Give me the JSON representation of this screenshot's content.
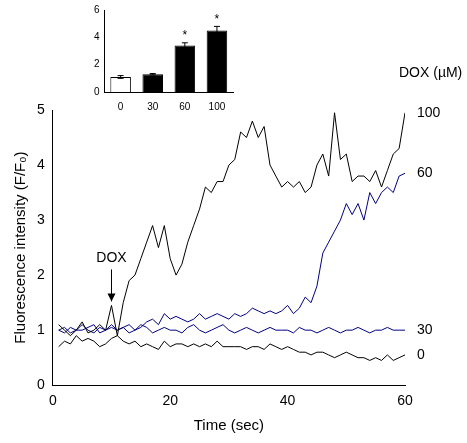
{
  "chart_data": [
    {
      "type": "line",
      "x_label": "Time (sec)",
      "y_label": "Fluorescence intensity (F/F₀)",
      "series_label_title": "DOX (µM)",
      "annotations": [
        {
          "text": "DOX",
          "x": 10,
          "y": 1.45
        }
      ],
      "x": [
        1,
        2,
        3,
        4,
        5,
        6,
        7,
        8,
        9,
        10,
        11,
        12,
        13,
        14,
        15,
        16,
        17,
        18,
        19,
        20,
        21,
        22,
        23,
        24,
        25,
        26,
        27,
        28,
        29,
        30,
        31,
        32,
        33,
        34,
        35,
        36,
        37,
        38,
        39,
        40,
        41,
        42,
        43,
        44,
        45,
        46,
        47,
        48,
        49,
        50,
        51,
        52,
        53,
        54,
        55,
        56,
        57,
        58,
        59,
        60
      ],
      "series": [
        {
          "name": "100",
          "color": "#000000",
          "values": [
            1.1,
            1.0,
            0.9,
            1.0,
            1.15,
            0.95,
            1.0,
            1.1,
            1.0,
            1.45,
            0.9,
            1.5,
            1.9,
            2.0,
            2.3,
            2.6,
            2.9,
            2.5,
            2.9,
            2.3,
            2.0,
            2.2,
            2.6,
            2.9,
            3.2,
            3.6,
            3.5,
            3.7,
            3.7,
            4.0,
            4.1,
            4.6,
            4.5,
            4.8,
            4.5,
            4.7,
            4.0,
            3.8,
            3.6,
            3.7,
            3.6,
            3.7,
            3.5,
            3.6,
            4.0,
            4.2,
            3.8,
            4.95,
            4.1,
            4.2,
            3.7,
            3.8,
            3.8,
            3.7,
            3.9,
            3.6,
            3.9,
            4.2,
            4.3,
            4.95
          ]
        },
        {
          "name": "60",
          "color": "#000080",
          "values": [
            1.0,
            1.05,
            0.95,
            1.0,
            1.0,
            1.05,
            1.1,
            0.95,
            1.0,
            1.05,
            1.0,
            1.05,
            1.1,
            1.0,
            1.05,
            1.15,
            1.2,
            1.1,
            1.3,
            1.2,
            1.25,
            1.2,
            1.15,
            1.2,
            1.3,
            1.2,
            1.25,
            1.3,
            1.25,
            1.2,
            1.3,
            1.25,
            1.3,
            1.4,
            1.35,
            1.3,
            1.35,
            1.3,
            1.35,
            1.45,
            1.3,
            1.4,
            1.6,
            1.5,
            1.8,
            2.4,
            2.6,
            2.8,
            3.0,
            3.3,
            3.1,
            3.3,
            3.0,
            3.5,
            3.3,
            3.5,
            3.6,
            3.5,
            3.8,
            3.85
          ]
        },
        {
          "name": "30",
          "color": "#000080",
          "values": [
            1.0,
            0.95,
            1.05,
            1.0,
            1.1,
            1.0,
            0.95,
            1.05,
            1.0,
            1.1,
            1.0,
            1.05,
            0.95,
            1.0,
            1.1,
            1.05,
            0.95,
            1.0,
            1.05,
            1.0,
            1.0,
            0.95,
            1.05,
            1.1,
            1.0,
            0.95,
            1.0,
            1.05,
            1.1,
            1.0,
            0.95,
            1.0,
            1.05,
            1.0,
            0.95,
            1.0,
            1.05,
            1.0,
            1.0,
            1.0,
            0.95,
            1.05,
            1.0,
            1.0,
            0.95,
            1.0,
            1.05,
            1.0,
            0.95,
            1.0,
            1.0,
            1.05,
            1.0,
            0.95,
            1.0,
            1.0,
            1.05,
            1.0,
            1.0,
            1.0
          ]
        },
        {
          "name": "0",
          "color": "#000000",
          "values": [
            0.7,
            0.8,
            0.75,
            0.9,
            0.8,
            0.85,
            0.8,
            0.7,
            0.75,
            0.85,
            0.9,
            0.8,
            0.75,
            0.8,
            0.7,
            0.75,
            0.7,
            0.65,
            0.8,
            0.7,
            0.75,
            0.75,
            0.7,
            0.75,
            0.7,
            0.75,
            0.7,
            0.8,
            0.7,
            0.7,
            0.7,
            0.7,
            0.65,
            0.7,
            0.7,
            0.65,
            0.75,
            0.7,
            0.65,
            0.7,
            0.65,
            0.6,
            0.6,
            0.55,
            0.6,
            0.6,
            0.55,
            0.5,
            0.55,
            0.6,
            0.55,
            0.5,
            0.5,
            0.45,
            0.5,
            0.45,
            0.55,
            0.45,
            0.5,
            0.55
          ]
        }
      ],
      "xlim": [
        0,
        60
      ],
      "xticks": [
        0,
        20,
        40,
        60
      ],
      "ylim": [
        0,
        5
      ],
      "yticks": [
        0,
        1,
        2,
        3,
        4,
        5
      ],
      "grid": false
    },
    {
      "type": "bar",
      "categories": [
        "0",
        "30",
        "60",
        "100"
      ],
      "values": [
        1.1,
        1.3,
        3.4,
        4.5
      ],
      "errors": [
        0.1,
        0.05,
        0.2,
        0.3
      ],
      "colors": [
        "#ffffff",
        "#000000",
        "#000000",
        "#000000"
      ],
      "marks": [
        {
          "category": "60",
          "text": "*"
        },
        {
          "category": "100",
          "text": "*"
        }
      ],
      "ylim": [
        0,
        6
      ],
      "yticks": [
        0,
        2,
        4,
        6
      ],
      "grid": false
    }
  ]
}
